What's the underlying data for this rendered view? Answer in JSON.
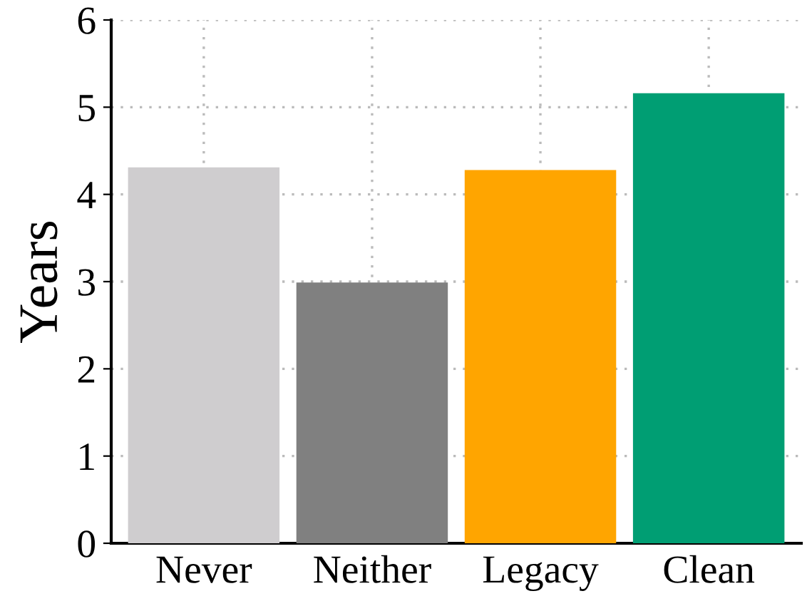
{
  "chart_data": {
    "type": "bar",
    "ylabel": "Years",
    "categories": [
      "Never",
      "Neither",
      "Legacy",
      "Clean"
    ],
    "values": [
      4.31,
      2.99,
      4.28,
      5.16
    ],
    "colors": [
      "#cfcdcf",
      "#808080",
      "#ffa500",
      "#009e73"
    ],
    "ylim": [
      0,
      6
    ],
    "yticks": [
      0,
      1,
      2,
      3,
      4,
      5,
      6
    ],
    "grid": true
  }
}
